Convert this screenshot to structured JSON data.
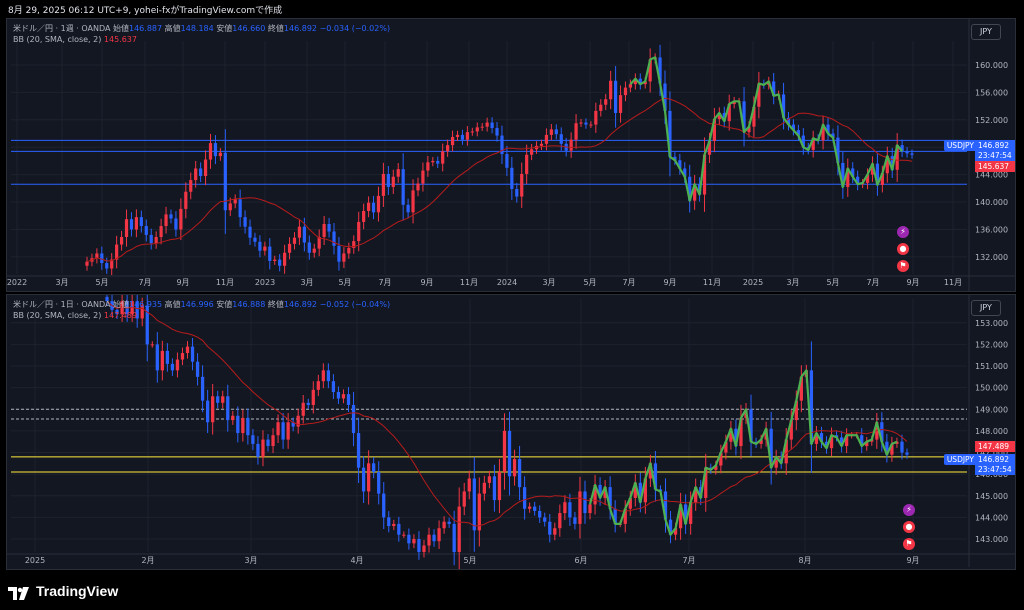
{
  "header": {
    "text": "8月 29, 2025 06:12 UTC+9, yohei-fxがTradingView.comで作成"
  },
  "footer": {
    "brand": "TradingView"
  },
  "panels": [
    {
      "title": "米ドル／円 · 1週 · OANDA",
      "open_label": "始値",
      "open": "146.887",
      "high_label": "高値",
      "high": "148.184",
      "low_label": "安値",
      "low": "146.660",
      "close_label": "終値",
      "close": "146.892",
      "change": "−0.034 (−0.02%)",
      "bb_label": "BB (20, SMA, close, 2)",
      "bb_value": "145.637",
      "currency": "JPY",
      "symbol_tag": "USDJPY",
      "price_tag": "146.892",
      "countdown": "23:47:54",
      "basis_tag": "145.637"
    },
    {
      "title": "米ドル／円 · 1日 · OANDA",
      "open_label": "始値",
      "open": "146.935",
      "high_label": "高値",
      "high": "146.996",
      "low_label": "安値",
      "low": "146.888",
      "close_label": "終値",
      "close": "146.892",
      "change": "−0.052 (−0.04%)",
      "bb_label": "BB (20, SMA, close, 2)",
      "bb_value": "147.489",
      "currency": "JPY",
      "symbol_tag": "USDJPY",
      "price_tag": "146.892",
      "countdown": "23:47:54",
      "basis_tag": "147.489"
    }
  ],
  "colors": {
    "up": "#f23645",
    "down": "#2962ff",
    "bb": "#b71c1c",
    "zigzag": "#4caf50",
    "bg": "#131722",
    "hline": "#2962ff",
    "yline": "#ffeb3b"
  },
  "chart_data": [
    {
      "type": "candlestick",
      "timeframe": "1W",
      "ylim": [
        129.5,
        163.5
      ],
      "y_ticks": [
        132.0,
        136.0,
        140.0,
        144.0,
        148.0,
        152.0,
        156.0,
        160.0
      ],
      "x_ticks": [
        "2022",
        "3月",
        "5月",
        "7月",
        "9月",
        "11月",
        "2023",
        "3月",
        "5月",
        "7月",
        "9月",
        "11月",
        "2024",
        "3月",
        "5月",
        "7月",
        "9月",
        "11月",
        "2025",
        "3月",
        "5月",
        "7月",
        "9月",
        "11月"
      ],
      "horizontal_lines": [
        149.0,
        147.4,
        142.6
      ],
      "closes": [
        131.3,
        131.8,
        132.5,
        131.1,
        130.3,
        131.6,
        133.8,
        134.9,
        137.5,
        136.0,
        137.8,
        136.5,
        135.2,
        134.0,
        134.9,
        136.5,
        138.2,
        137.6,
        136.0,
        139.0,
        141.5,
        143.2,
        144.9,
        143.8,
        146.2,
        148.6,
        146.7,
        147.2,
        138.8,
        139.8,
        140.4,
        137.8,
        136.4,
        134.8,
        134.2,
        132.9,
        133.5,
        131.4,
        131.6,
        130.7,
        132.6,
        133.9,
        134.8,
        136.4,
        134.1,
        132.6,
        133.2,
        134.9,
        136.8,
        135.7,
        133.6,
        131.3,
        132.5,
        133.3,
        134.3,
        137.1,
        138.7,
        139.9,
        138.5,
        140.9,
        144.1,
        142.2,
        143.7,
        144.8,
        139.6,
        138.5,
        141.7,
        142.7,
        144.6,
        145.8,
        146.0,
        145.6,
        147.4,
        148.3,
        149.5,
        149.8,
        149.1,
        150.2,
        150.3,
        150.9,
        151.0,
        151.6,
        150.8,
        149.7,
        147.0,
        145.0,
        141.9,
        140.8,
        144.1,
        146.9,
        147.7,
        148.2,
        148.5,
        149.8,
        150.6,
        149.9,
        148.5,
        147.5,
        149.1,
        151.5,
        151.6,
        151.3,
        151.3,
        153.3,
        154.2,
        155.0,
        157.7,
        153.0,
        155.6,
        156.7,
        157.2,
        158.0,
        157.2,
        157.6,
        160.8,
        161.1,
        157.3,
        153.3,
        146.6,
        146.1,
        144.9,
        143.7,
        140.2,
        142.6,
        141.1,
        146.9,
        148.9,
        152.1,
        153.0,
        151.8,
        154.3,
        154.7,
        154.7,
        150.2,
        151.0,
        153.9,
        157.3,
        157.1,
        157.6,
        155.5,
        155.7,
        152.3,
        151.3,
        150.5,
        149.7,
        148.0,
        147.6,
        149.3,
        149.0,
        151.3,
        150.0,
        149.4,
        145.7,
        142.2,
        144.9,
        143.7,
        142.6,
        142.8,
        144.0,
        145.6,
        142.5,
        144.2,
        146.7,
        144.7,
        148.3,
        147.4,
        147.1,
        146.9
      ]
    },
    {
      "type": "candlestick",
      "timeframe": "1D",
      "ylim": [
        142.4,
        154.1
      ],
      "y_ticks": [
        143.0,
        144.0,
        145.0,
        146.0,
        147.0,
        148.0,
        149.0,
        150.0,
        151.0,
        152.0,
        153.0
      ],
      "x_ticks": [
        "2025",
        "2月",
        "3月",
        "4月",
        "5月",
        "6月",
        "7月",
        "8月",
        "9月"
      ],
      "horizontal_lines": [
        149.0,
        148.55
      ],
      "yellow_lines": [
        146.8,
        146.1
      ],
      "closes": [
        154.0,
        153.6,
        153.4,
        154.0,
        153.4,
        154.0,
        153.2,
        153.8,
        152.0,
        152.0,
        150.8,
        151.7,
        151.1,
        150.8,
        151.3,
        151.6,
        151.9,
        151.2,
        150.5,
        149.4,
        148.4,
        149.6,
        149.3,
        149.6,
        148.5,
        148.7,
        147.9,
        148.6,
        147.8,
        147.4,
        146.8,
        147.6,
        147.3,
        147.8,
        148.4,
        147.6,
        148.4,
        148.2,
        148.7,
        149.3,
        149.2,
        149.9,
        150.3,
        150.8,
        150.3,
        149.8,
        149.5,
        149.7,
        149.2,
        147.9,
        146.3,
        145.2,
        146.5,
        146.1,
        145.1,
        144.0,
        143.6,
        143.7,
        143.2,
        143.2,
        142.8,
        143.0,
        142.4,
        142.7,
        143.2,
        142.9,
        143.5,
        143.8,
        143.7,
        142.4,
        144.5,
        145.2,
        145.8,
        143.4,
        145.1,
        145.6,
        145.9,
        144.8,
        146.1,
        148.0,
        145.9,
        146.7,
        145.4,
        144.4,
        144.5,
        144.3,
        144.0,
        143.8,
        143.2,
        143.5,
        144.2,
        144.7,
        144.0,
        143.7,
        145.2,
        144.2,
        144.6,
        145.5,
        144.9,
        145.4,
        144.4,
        143.7,
        143.7,
        144.4,
        144.9,
        145.6,
        144.7,
        145.8,
        146.5,
        145.3,
        145.2,
        143.9,
        143.2,
        143.5,
        144.6,
        143.7,
        144.7,
        145.4,
        144.9,
        146.3,
        146.2,
        146.4,
        147.0,
        147.5,
        148.1,
        147.3,
        148.6,
        149.0,
        147.5,
        147.4,
        147.6,
        148.1,
        146.3,
        146.8,
        146.5,
        147.6,
        148.5,
        149.4,
        150.5,
        150.8,
        147.4,
        147.9,
        147.5,
        147.2,
        147.8,
        147.7,
        147.3,
        147.8,
        147.8,
        147.8,
        147.3,
        147.5,
        147.6,
        148.4,
        147.5,
        146.9,
        147.4,
        147.5,
        147.0,
        146.9
      ]
    }
  ]
}
